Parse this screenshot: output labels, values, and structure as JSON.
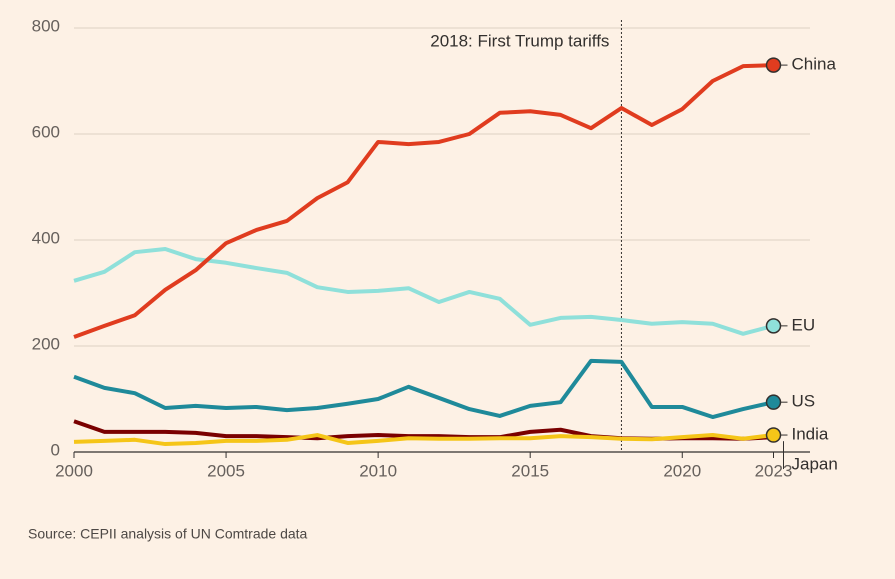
{
  "chart_data": {
    "type": "line",
    "annotation": "2018: First Trump tariffs",
    "annotation_x": 2018,
    "source": "Source: CEPII analysis of UN Comtrade data",
    "x": [
      2000,
      2001,
      2002,
      2003,
      2004,
      2005,
      2006,
      2007,
      2008,
      2009,
      2010,
      2011,
      2012,
      2013,
      2014,
      2015,
      2016,
      2017,
      2018,
      2019,
      2020,
      2021,
      2022,
      2023
    ],
    "xlim": [
      2000,
      2024.2
    ],
    "xticks": [
      2000,
      2005,
      2010,
      2015,
      2020,
      2023
    ],
    "ylim": [
      0,
      800
    ],
    "yticks": [
      0,
      200,
      400,
      600,
      800
    ],
    "grid": true,
    "series": [
      {
        "name": "EU",
        "color": "#8fe0da",
        "end_marker": true,
        "values": [
          323,
          340,
          377,
          383,
          364,
          357,
          347,
          338,
          311,
          302,
          304,
          309,
          283,
          302,
          289,
          240,
          253,
          255,
          249,
          242,
          245,
          242,
          223,
          238
        ]
      },
      {
        "name": "China",
        "color": "#e03c1f",
        "end_marker": true,
        "values": [
          217,
          238,
          258,
          306,
          343,
          394,
          419,
          436,
          479,
          509,
          585,
          581,
          585,
          600,
          640,
          643,
          636,
          611,
          649,
          617,
          647,
          700,
          728,
          730
        ]
      },
      {
        "name": "US",
        "color": "#1f8a9a",
        "end_marker": true,
        "values": [
          142,
          121,
          111,
          83,
          87,
          83,
          85,
          79,
          83,
          91,
          100,
          123,
          102,
          81,
          68,
          87,
          94,
          172,
          170,
          85,
          85,
          66,
          81,
          94
        ]
      },
      {
        "name": "Japan",
        "color": "#7a0000",
        "end_marker": false,
        "values": [
          58,
          38,
          38,
          38,
          36,
          30,
          30,
          28,
          26,
          30,
          32,
          30,
          30,
          28,
          28,
          38,
          42,
          30,
          26,
          25,
          26,
          26,
          25,
          28
        ]
      },
      {
        "name": "India",
        "color": "#f5c518",
        "end_marker": true,
        "values": [
          19,
          21,
          23,
          15,
          17,
          21,
          21,
          23,
          32,
          17,
          21,
          26,
          25,
          25,
          26,
          26,
          30,
          28,
          25,
          24,
          28,
          32,
          25,
          32
        ]
      }
    ]
  }
}
